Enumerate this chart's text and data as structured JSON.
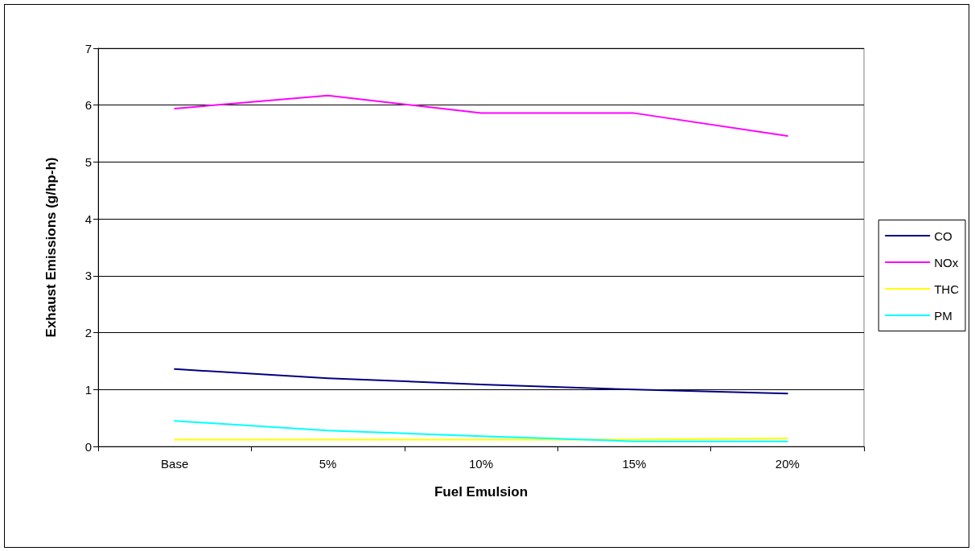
{
  "chart_data": {
    "type": "line",
    "xlabel": "Fuel Emulsion",
    "ylabel": "Exhaust Emissions (g/hp-h)",
    "categories": [
      "Base",
      "5%",
      "10%",
      "15%",
      "20%"
    ],
    "series": [
      {
        "name": "CO",
        "color": "#000080",
        "values": [
          1.36,
          1.2,
          1.09,
          1.0,
          0.93
        ]
      },
      {
        "name": "NOx",
        "color": "#ff00ff",
        "values": [
          5.94,
          6.17,
          5.86,
          5.86,
          5.46
        ]
      },
      {
        "name": "THC",
        "color": "#ffff00",
        "values": [
          0.12,
          0.12,
          0.12,
          0.12,
          0.14
        ]
      },
      {
        "name": "PM",
        "color": "#00ffff",
        "values": [
          0.45,
          0.28,
          0.18,
          0.09,
          0.09
        ]
      }
    ],
    "ylim": [
      0,
      7
    ],
    "yticks": [
      0,
      1,
      2,
      3,
      4,
      5,
      6,
      7
    ],
    "grid": "y",
    "legend": "right",
    "marker": "none",
    "line_style": "solid"
  }
}
